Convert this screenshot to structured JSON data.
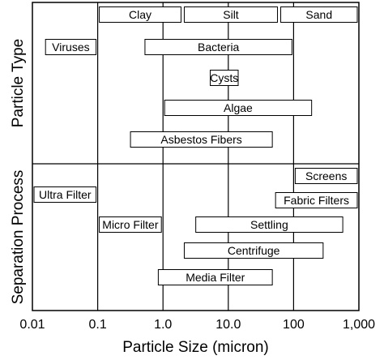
{
  "chart_data": {
    "type": "range_bar",
    "xlabel": "Particle Size (micron)",
    "x_scale": "log",
    "xlim": [
      0.01,
      1000
    ],
    "x_ticks": [
      {
        "value": 0.01,
        "label": "0.01"
      },
      {
        "value": 0.1,
        "label": "0.1"
      },
      {
        "value": 1,
        "label": "1.0"
      },
      {
        "value": 10,
        "label": "10.0"
      },
      {
        "value": 100,
        "label": "100"
      },
      {
        "value": 1000,
        "label": "1,000"
      }
    ],
    "groups": [
      {
        "label": "Particle Type",
        "bars": [
          {
            "label": "Clay",
            "start": 0.1,
            "end": 2
          },
          {
            "label": "Silt",
            "start": 2,
            "end": 60
          },
          {
            "label": "Sand",
            "start": 60,
            "end": 1000
          },
          {
            "label": "Viruses",
            "start": 0.015,
            "end": 0.1
          },
          {
            "label": "Bacteria",
            "start": 0.5,
            "end": 100
          },
          {
            "label": "Cysts",
            "start": 5,
            "end": 15
          },
          {
            "label": "Algae",
            "start": 1,
            "end": 200
          },
          {
            "label": "Asbestos Fibers",
            "start": 0.3,
            "end": 50
          }
        ]
      },
      {
        "label": "Separation Process",
        "bars": [
          {
            "label": "Screens",
            "start": 100,
            "end": 1000
          },
          {
            "label": "Ultra Filter",
            "start": 0.01,
            "end": 0.1
          },
          {
            "label": "Fabric Filters",
            "start": 50,
            "end": 1000
          },
          {
            "label": "Micro Filter",
            "start": 0.1,
            "end": 1
          },
          {
            "label": "Settling",
            "start": 3,
            "end": 600
          },
          {
            "label": "Centrifuge",
            "start": 2,
            "end": 300
          },
          {
            "label": "Media Filter",
            "start": 0.8,
            "end": 50
          }
        ]
      }
    ]
  }
}
